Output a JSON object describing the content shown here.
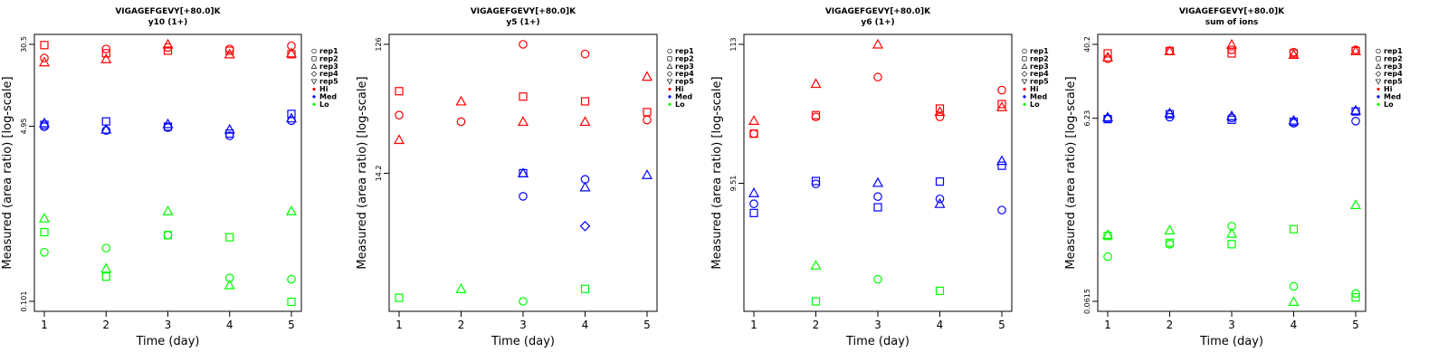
{
  "chart_data": [
    {
      "type": "scatter",
      "title": "VIGAGEFGEVY[+80.0]K",
      "subtitle": "y10 (1+)",
      "xlabel": "Time (day)",
      "ylabel": "Measured (area ratio) [log-scale]",
      "yscale": "log",
      "ylim": [
        0.101,
        30.5
      ],
      "yticks": [
        "0.101",
        "4.95",
        "30.5"
      ],
      "xticks": [
        "1",
        "2",
        "3",
        "4",
        "5"
      ],
      "legend": {
        "position": "right",
        "entries": [
          "rep1",
          "rep2",
          "rep3",
          "rep4",
          "rep5",
          "Hi",
          "Med",
          "Lo"
        ]
      },
      "colors": {
        "Hi": "#ff0000",
        "Med": "#0000ff",
        "Lo": "#00ff00"
      },
      "series": [
        {
          "group": "Hi",
          "rep": "rep1",
          "x": [
            1,
            2,
            3,
            4,
            5
          ],
          "y": [
            22.5,
            27.5,
            28.5,
            27.5,
            29.5
          ]
        },
        {
          "group": "Hi",
          "rep": "rep2",
          "x": [
            1,
            2,
            3,
            4,
            5
          ],
          "y": [
            30.0,
            25.0,
            26.5,
            26.5,
            24.5
          ]
        },
        {
          "group": "Hi",
          "rep": "rep3",
          "x": [
            1,
            2,
            3,
            4,
            5
          ],
          "y": [
            20.5,
            22.0,
            30.5,
            24.5,
            25.0
          ]
        },
        {
          "group": "Med",
          "rep": "rep1",
          "x": [
            1,
            2,
            3,
            4,
            5
          ],
          "y": [
            4.9,
            4.5,
            4.8,
            4.0,
            5.6
          ]
        },
        {
          "group": "Med",
          "rep": "rep2",
          "x": [
            1,
            2,
            3,
            4,
            5
          ],
          "y": [
            5.1,
            5.5,
            4.9,
            4.2,
            6.5
          ]
        },
        {
          "group": "Med",
          "rep": "rep3",
          "x": [
            1,
            2,
            3,
            4,
            5
          ],
          "y": [
            5.3,
            4.6,
            5.2,
            4.6,
            5.9
          ]
        },
        {
          "group": "Lo",
          "rep": "rep1",
          "x": [
            1,
            2,
            3,
            4,
            5
          ],
          "y": [
            0.3,
            0.33,
            0.44,
            0.17,
            0.165
          ]
        },
        {
          "group": "Lo",
          "rep": "rep2",
          "x": [
            1,
            2,
            3,
            4,
            5
          ],
          "y": [
            0.47,
            0.175,
            0.44,
            0.42,
            0.1
          ]
        },
        {
          "group": "Lo",
          "rep": "rep3",
          "x": [
            1,
            2,
            3,
            4,
            5
          ],
          "y": [
            0.64,
            0.21,
            0.75,
            0.145,
            0.75
          ]
        }
      ]
    },
    {
      "type": "scatter",
      "title": "VIGAGEFGEVY[+80.0]K",
      "subtitle": "y5 (1+)",
      "xlabel": "Time (day)",
      "ylabel": "Measured (area ratio) [log-scale]",
      "yscale": "log",
      "ylim": [
        1.62,
        126
      ],
      "yticks": [
        "14.2",
        "126"
      ],
      "xticks": [
        "1",
        "2",
        "3",
        "4",
        "5"
      ],
      "legend": {
        "position": "right",
        "entries": [
          "rep1",
          "rep2",
          "rep3",
          "rep4",
          "rep5",
          "Hi",
          "Med",
          "Lo"
        ]
      },
      "colors": {
        "Hi": "#ff0000",
        "Med": "#0000ff",
        "Lo": "#00ff00"
      },
      "series": [
        {
          "group": "Hi",
          "rep": "rep1",
          "x": [
            1,
            2,
            3,
            4,
            5
          ],
          "y": [
            38,
            34,
            126,
            107,
            35
          ]
        },
        {
          "group": "Hi",
          "rep": "rep2",
          "x": [
            1,
            2,
            3,
            4,
            5
          ],
          "y": [
            57,
            null,
            52,
            48,
            40
          ]
        },
        {
          "group": "Hi",
          "rep": "rep3",
          "x": [
            1,
            2,
            3,
            4,
            5
          ],
          "y": [
            25,
            48,
            34,
            34,
            73
          ]
        },
        {
          "group": "Med",
          "rep": "rep1",
          "x": [
            1,
            2,
            3,
            4,
            5
          ],
          "y": [
            null,
            null,
            9.6,
            12.8,
            null
          ]
        },
        {
          "group": "Med",
          "rep": "rep2",
          "x": [
            1,
            2,
            3,
            4,
            5
          ],
          "y": [
            null,
            null,
            14.2,
            null,
            null
          ]
        },
        {
          "group": "Med",
          "rep": "rep3",
          "x": [
            1,
            2,
            3,
            4,
            5
          ],
          "y": [
            null,
            null,
            14.2,
            11.2,
            13.8
          ]
        },
        {
          "group": "Med",
          "rep": "rep4",
          "x": [
            1,
            2,
            3,
            4,
            5
          ],
          "y": [
            null,
            null,
            null,
            5.8,
            null
          ]
        },
        {
          "group": "Lo",
          "rep": "rep1",
          "x": [
            1,
            2,
            3,
            4,
            5
          ],
          "y": [
            null,
            null,
            1.62,
            null,
            null
          ]
        },
        {
          "group": "Lo",
          "rep": "rep2",
          "x": [
            1,
            2,
            3,
            4,
            5
          ],
          "y": [
            1.72,
            null,
            null,
            2.0,
            null
          ]
        },
        {
          "group": "Lo",
          "rep": "rep3",
          "x": [
            1,
            2,
            3,
            4,
            5
          ],
          "y": [
            null,
            2.0,
            null,
            null,
            null
          ]
        }
      ]
    },
    {
      "type": "scatter",
      "title": "VIGAGEFGEVY[+80.0]K",
      "subtitle": "y6 (1+)",
      "xlabel": "Time (day)",
      "ylabel": "Measured (area ratio) [log-scale]",
      "yscale": "log",
      "ylim": [
        1.16,
        113
      ],
      "yticks": [
        "9.51",
        "113"
      ],
      "xticks": [
        "1",
        "2",
        "3",
        "4",
        "5"
      ],
      "legend": {
        "position": "right",
        "entries": [
          "rep1",
          "rep2",
          "rep3",
          "rep4",
          "rep5",
          "Hi",
          "Med",
          "Lo"
        ]
      },
      "colors": {
        "Hi": "#ff0000",
        "Med": "#0000ff",
        "Lo": "#00ff00"
      },
      "series": [
        {
          "group": "Hi",
          "rep": "rep1",
          "x": [
            1,
            2,
            3,
            4,
            5
          ],
          "y": [
            23,
            31,
            63,
            31,
            50
          ]
        },
        {
          "group": "Hi",
          "rep": "rep2",
          "x": [
            1,
            2,
            3,
            4,
            5
          ],
          "y": [
            23,
            32,
            null,
            36,
            39
          ]
        },
        {
          "group": "Hi",
          "rep": "rep3",
          "x": [
            1,
            2,
            3,
            4,
            5
          ],
          "y": [
            29,
            56,
            113,
            34,
            37
          ]
        },
        {
          "group": "Med",
          "rep": "rep1",
          "x": [
            1,
            2,
            3,
            4,
            5
          ],
          "y": [
            6.6,
            9.4,
            7.5,
            7.2,
            5.9
          ]
        },
        {
          "group": "Med",
          "rep": "rep2",
          "x": [
            1,
            2,
            3,
            4,
            5
          ],
          "y": [
            5.6,
            9.9,
            6.2,
            9.8,
            13.0
          ]
        },
        {
          "group": "Med",
          "rep": "rep3",
          "x": [
            1,
            2,
            3,
            4,
            5
          ],
          "y": [
            8.0,
            null,
            9.6,
            6.6,
            14.2
          ]
        },
        {
          "group": "Lo",
          "rep": "rep1",
          "x": [
            1,
            2,
            3,
            4,
            5
          ],
          "y": [
            null,
            null,
            1.72,
            null,
            null
          ]
        },
        {
          "group": "Lo",
          "rep": "rep2",
          "x": [
            1,
            2,
            3,
            4,
            5
          ],
          "y": [
            null,
            1.16,
            null,
            1.4,
            null
          ]
        },
        {
          "group": "Lo",
          "rep": "rep3",
          "x": [
            1,
            2,
            3,
            4,
            5
          ],
          "y": [
            null,
            2.2,
            null,
            null,
            null
          ]
        }
      ]
    },
    {
      "type": "scatter",
      "title": "VIGAGEFGEVY[+80.0]K",
      "subtitle": "sum of ions",
      "xlabel": "Time (day)",
      "ylabel": "Measured (area ratio) [log-scale]",
      "yscale": "log",
      "ylim": [
        0.0615,
        40.2
      ],
      "yticks": [
        "0.0615",
        "6.23",
        "40.2"
      ],
      "xticks": [
        "1",
        "2",
        "3",
        "4",
        "5"
      ],
      "legend": {
        "position": "right",
        "entries": [
          "rep1",
          "rep2",
          "rep3",
          "rep4",
          "rep5",
          "Hi",
          "Med",
          "Lo"
        ]
      },
      "colors": {
        "Hi": "#ff0000",
        "Med": "#0000ff",
        "Lo": "#00ff00"
      },
      "series": [
        {
          "group": "Hi",
          "rep": "rep1",
          "x": [
            1,
            2,
            3,
            4,
            5
          ],
          "y": [
            28,
            34,
            35,
            33,
            35
          ]
        },
        {
          "group": "Hi",
          "rep": "rep2",
          "x": [
            1,
            2,
            3,
            4,
            5
          ],
          "y": [
            32,
            34,
            32,
            32,
            34
          ]
        },
        {
          "group": "Hi",
          "rep": "rep3",
          "x": [
            1,
            2,
            3,
            4,
            5
          ],
          "y": [
            29,
            34,
            40,
            31,
            34
          ]
        },
        {
          "group": "Med",
          "rep": "rep1",
          "x": [
            1,
            2,
            3,
            4,
            5
          ],
          "y": [
            6.2,
            6.4,
            6.3,
            5.5,
            5.8
          ]
        },
        {
          "group": "Med",
          "rep": "rep2",
          "x": [
            1,
            2,
            3,
            4,
            5
          ],
          "y": [
            6.1,
            6.9,
            6.0,
            5.7,
            7.4
          ]
        },
        {
          "group": "Med",
          "rep": "rep3",
          "x": [
            1,
            2,
            3,
            4,
            5
          ],
          "y": [
            6.4,
            7.1,
            6.6,
            5.9,
            7.6
          ]
        },
        {
          "group": "Lo",
          "rep": "rep1",
          "x": [
            1,
            2,
            3,
            4,
            5
          ],
          "y": [
            0.19,
            0.26,
            0.41,
            0.09,
            0.075
          ]
        },
        {
          "group": "Lo",
          "rep": "rep2",
          "x": [
            1,
            2,
            3,
            4,
            5
          ],
          "y": [
            0.32,
            0.27,
            0.26,
            0.38,
            0.068
          ]
        },
        {
          "group": "Lo",
          "rep": "rep3",
          "x": [
            1,
            2,
            3,
            4,
            5
          ],
          "y": [
            0.33,
            0.37,
            0.34,
            0.061,
            0.7
          ]
        }
      ]
    }
  ]
}
